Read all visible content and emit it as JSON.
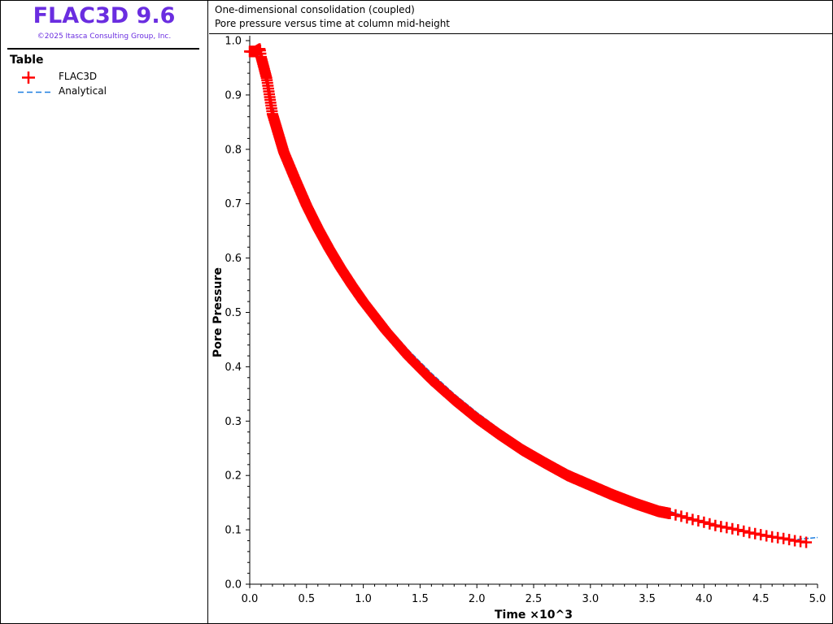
{
  "app": {
    "title": "FLAC3D 9.6",
    "copyright": "©2025 Itasca Consulting Group, Inc."
  },
  "legend": {
    "title": "Table",
    "items": [
      {
        "label": "FLAC3D",
        "symbol": "plus-marker",
        "color": "#ff0000"
      },
      {
        "label": "Analytical",
        "symbol": "dashed-line",
        "color": "#1e7fe0"
      }
    ]
  },
  "header": {
    "line1": "One-dimensional consolidation (coupled)",
    "line2": "Pore pressure versus time at column mid-height"
  },
  "chart_data": {
    "type": "line",
    "xlabel": "Time ×10^3",
    "ylabel": "Pore Pressure",
    "xlim": [
      0,
      5
    ],
    "ylim": [
      0,
      1
    ],
    "x_ticks": [
      "0.0",
      "0.5",
      "1.0",
      "1.5",
      "2.0",
      "2.5",
      "3.0",
      "3.5",
      "4.0",
      "4.5",
      "5.0"
    ],
    "y_ticks": [
      "0.0",
      "0.1",
      "0.2",
      "0.3",
      "0.4",
      "0.5",
      "0.6",
      "0.7",
      "0.8",
      "0.9",
      "1.0"
    ],
    "grid": false,
    "series": [
      {
        "name": "FLAC3D",
        "style": "markers",
        "color": "#ff0000",
        "x": [
          0.0,
          0.05,
          0.09,
          0.1,
          0.15,
          0.2,
          0.3,
          0.4,
          0.5,
          0.6,
          0.7,
          0.8,
          0.9,
          1.0,
          1.2,
          1.4,
          1.6,
          1.8,
          2.0,
          2.2,
          2.4,
          2.6,
          2.8,
          3.0,
          3.2,
          3.4,
          3.6,
          3.7,
          3.8,
          3.9,
          4.0,
          4.1,
          4.2,
          4.3,
          4.4,
          4.5,
          4.6,
          4.7,
          4.8,
          4.9
        ],
        "y": [
          0.98,
          0.98,
          0.985,
          0.97,
          0.93,
          0.865,
          0.795,
          0.745,
          0.697,
          0.655,
          0.617,
          0.582,
          0.55,
          0.52,
          0.466,
          0.418,
          0.376,
          0.339,
          0.305,
          0.275,
          0.247,
          0.223,
          0.2,
          0.182,
          0.164,
          0.148,
          0.134,
          0.13,
          0.125,
          0.119,
          0.114,
          0.108,
          0.104,
          0.1,
          0.095,
          0.091,
          0.087,
          0.084,
          0.08,
          0.077
        ]
      },
      {
        "name": "Analytical",
        "style": "dashed",
        "color": "#1e7fe0",
        "x": [
          0.0,
          0.05,
          0.1,
          0.15,
          0.2,
          0.3,
          0.4,
          0.5,
          0.6,
          0.7,
          0.8,
          0.9,
          1.0,
          1.2,
          1.4,
          1.6,
          1.8,
          2.0,
          2.2,
          2.4,
          2.6,
          2.8,
          3.0,
          3.2,
          3.4,
          3.6,
          3.8,
          4.0,
          4.2,
          4.4,
          4.6,
          4.8,
          5.0
        ],
        "y": [
          0.98,
          0.98,
          0.965,
          0.93,
          0.88,
          0.81,
          0.757,
          0.71,
          0.667,
          0.63,
          0.595,
          0.562,
          0.532,
          0.477,
          0.43,
          0.388,
          0.35,
          0.316,
          0.285,
          0.257,
          0.232,
          0.21,
          0.19,
          0.172,
          0.156,
          0.141,
          0.127,
          0.115,
          0.105,
          0.096,
          0.088,
          0.082,
          0.086
        ]
      }
    ]
  }
}
